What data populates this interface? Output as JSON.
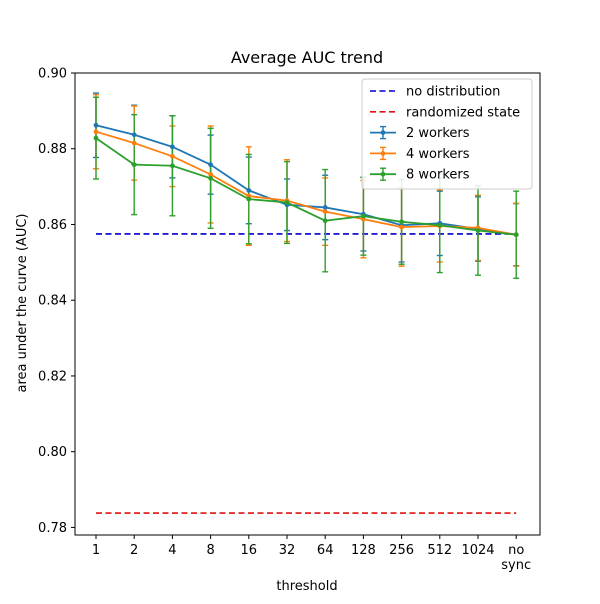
{
  "chart_data": {
    "type": "line",
    "title": "Average AUC trend",
    "xlabel": "threshold",
    "ylabel": "area under the curve (AUC)",
    "categories": [
      "1",
      "2",
      "4",
      "8",
      "16",
      "32",
      "64",
      "128",
      "256",
      "512",
      "1024",
      "no\nsync"
    ],
    "ylim": [
      0.778,
      0.9
    ],
    "yticks": [
      0.78,
      0.8,
      0.82,
      0.84,
      0.86,
      0.88,
      0.9
    ],
    "ytick_labels": [
      "0.78",
      "0.80",
      "0.82",
      "0.84",
      "0.86",
      "0.88",
      "0.90"
    ],
    "grid": false,
    "legend_position": "top-right",
    "reference_lines": [
      {
        "name": "no distribution",
        "value": 0.8575,
        "color": "#0000cc",
        "style": "dashed"
      },
      {
        "name": "randomized state",
        "value": 0.7838,
        "color": "#dd1111",
        "style": "dashed"
      }
    ],
    "series": [
      {
        "name": "2 workers",
        "color": "#1f77b4",
        "values": [
          0.8862,
          0.8837,
          0.8805,
          0.8758,
          0.869,
          0.8652,
          0.8645,
          0.8627,
          0.8598,
          0.8603,
          0.8588,
          0.8573
        ],
        "errors": [
          0.0085,
          0.0078,
          0.0082,
          0.0078,
          0.0088,
          0.0068,
          0.0085,
          0.0097,
          0.0097,
          0.0085,
          0.0085,
          0.0082
        ]
      },
      {
        "name": "4 workers",
        "color": "#ff7f0e",
        "values": [
          0.8845,
          0.8815,
          0.878,
          0.8732,
          0.8675,
          0.8663,
          0.8634,
          0.8614,
          0.8593,
          0.8596,
          0.8591,
          0.8573
        ],
        "errors": [
          0.0098,
          0.0098,
          0.008,
          0.0128,
          0.013,
          0.0108,
          0.0089,
          0.0102,
          0.0103,
          0.0095,
          0.0086,
          0.0083
        ]
      },
      {
        "name": "8 workers",
        "color": "#2ca02c",
        "values": [
          0.8828,
          0.8758,
          0.8755,
          0.8722,
          0.8667,
          0.8658,
          0.861,
          0.8622,
          0.8607,
          0.8598,
          0.8584,
          0.8573
        ],
        "errors": [
          0.0108,
          0.0132,
          0.0132,
          0.0132,
          0.0118,
          0.0108,
          0.0135,
          0.0103,
          0.0112,
          0.0125,
          0.0118,
          0.0115
        ]
      }
    ]
  }
}
